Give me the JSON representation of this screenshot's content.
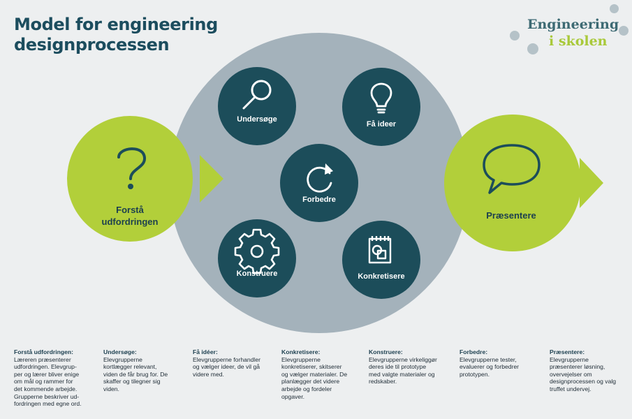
{
  "title": {
    "line1": "Model for engineering",
    "line2": "designprocessen"
  },
  "brand": {
    "line1": "Engineering",
    "line2": "i skolen",
    "color_primary": "#3d6a73",
    "color_accent": "#a9c93a",
    "color_dot": "#b5c2c8"
  },
  "colors": {
    "lime": "#b2cf3a",
    "teal": "#1c4d5a",
    "gray_circle": "#a4b2bb",
    "background": "#edeff0"
  },
  "nodes": {
    "undersoge": {
      "label": "Undersøge",
      "icon": "magnifier-icon"
    },
    "faa_ideer": {
      "label": "Få ideer",
      "icon": "lightbulb-icon"
    },
    "forbedre": {
      "label": "Forbedre",
      "icon": "refresh-icon"
    },
    "konstruere": {
      "label": "Konstruere",
      "icon": "gear-icon"
    },
    "konkretisere": {
      "label": "Konkretisere",
      "icon": "clipboard-shapes-icon"
    }
  },
  "left": {
    "line1": "Forstå",
    "line2": "udfordringen",
    "icon": "question-mark-icon"
  },
  "right": {
    "label": "Præsentere",
    "icon": "speech-bubble-icon"
  },
  "descriptions": [
    {
      "heading": "Forstå udfordringen:",
      "lines": [
        "Læreren præsenterer",
        "udfordringen. Elevgrup-",
        "per og lærer bliver enige",
        "om mål og rammer for",
        "det kommende arbejde.",
        "Grupperne beskriver ud-",
        "fordringen med egne ord."
      ]
    },
    {
      "heading": "Undersøge:",
      "lines": [
        "Elevgrupperne",
        "kortlægger relevant,",
        "viden de får brug for. De",
        "skaffer og tilegner sig",
        "viden."
      ]
    },
    {
      "heading": "Få idéer:",
      "lines": [
        "Elevgrupperne forhandler",
        "og vælger ideer, de vil gå",
        "videre med."
      ]
    },
    {
      "heading": "Konkretisere:",
      "lines": [
        "Elevgrupperne",
        "konkretiserer, skitserer",
        "og vælger materialer. De",
        "planlægger det videre",
        "arbejde og fordeler",
        "opgaver."
      ]
    },
    {
      "heading": "Konstruere:",
      "lines": [
        "Elevgrupperne virkeliggør",
        "deres ide til prototype",
        "med valgte materialer og",
        "redskaber."
      ]
    },
    {
      "heading": "Forbedre:",
      "lines": [
        "Elevgrupperne tester,",
        "evaluerer og forbedrer",
        "prototypen."
      ]
    },
    {
      "heading": "Præsentere:",
      "lines": [
        "Elevgrupperne",
        "præsenterer løsning,",
        "overvejelser om",
        "designprocessen og valg",
        "truffet undervej."
      ]
    }
  ]
}
